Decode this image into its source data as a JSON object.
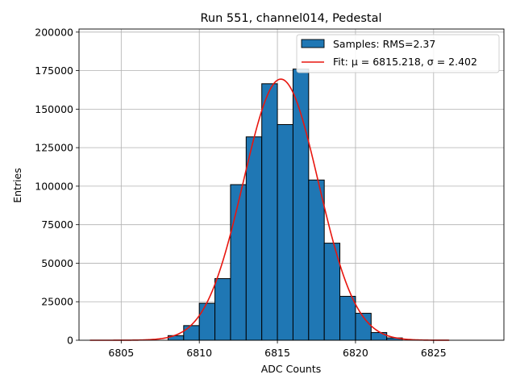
{
  "chart_data": {
    "type": "bar",
    "title": "Run 551, channel014, Pedestal",
    "xlabel": "ADC Counts",
    "ylabel": "Entries",
    "xlim": [
      6802.3,
      6829.5
    ],
    "ylim": [
      0,
      202000
    ],
    "xticks": [
      6805,
      6810,
      6815,
      6820,
      6825
    ],
    "yticks": [
      0,
      25000,
      50000,
      75000,
      100000,
      125000,
      150000,
      175000,
      200000
    ],
    "grid": true,
    "legend_position": "top-right",
    "bin_width": 1.0,
    "bins": [
      {
        "x": 6808.5,
        "value": 3000
      },
      {
        "x": 6809.5,
        "value": 9500
      },
      {
        "x": 6810.5,
        "value": 24000
      },
      {
        "x": 6811.5,
        "value": 40000
      },
      {
        "x": 6812.5,
        "value": 101000
      },
      {
        "x": 6813.5,
        "value": 132000
      },
      {
        "x": 6814.5,
        "value": 166500
      },
      {
        "x": 6815.5,
        "value": 140000
      },
      {
        "x": 6816.5,
        "value": 176000
      },
      {
        "x": 6817.5,
        "value": 104000
      },
      {
        "x": 6818.5,
        "value": 63000
      },
      {
        "x": 6819.5,
        "value": 28500
      },
      {
        "x": 6820.5,
        "value": 17500
      },
      {
        "x": 6821.5,
        "value": 5000
      },
      {
        "x": 6822.5,
        "value": 1500
      }
    ],
    "fit": {
      "type": "gaussian",
      "mu": 6815.218,
      "sigma": 2.402,
      "amplitude": 169500,
      "x_range": [
        6803,
        6826
      ]
    },
    "legend": {
      "hist_label": "Samples: RMS=2.37",
      "fit_label": "Fit: μ = 6815.218, σ = 2.402"
    },
    "colors": {
      "bar_fill": "#1f77b4",
      "bar_edge": "#000000",
      "fit_line": "#e8160f",
      "grid": "#b0b0b0"
    }
  }
}
